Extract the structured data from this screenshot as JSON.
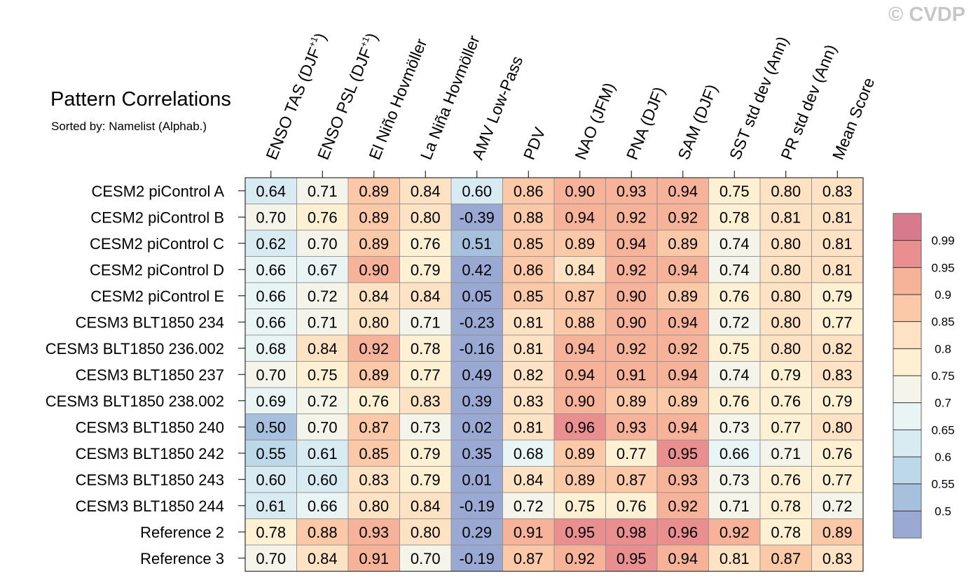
{
  "title": "Pattern Correlations",
  "subtitle": "Sorted by: Namelist (Alphab.)",
  "watermark": "© CVDP",
  "chart_data": {
    "type": "heatmap",
    "columns": [
      {
        "text": "ENSO TAS (DJF",
        "sup": "+1",
        "tail": ")"
      },
      {
        "text": "ENSO PSL (DJF",
        "sup": "+1",
        "tail": ")"
      },
      {
        "text": "El Niño Hovmöller"
      },
      {
        "text": "La Niña Hovmöller"
      },
      {
        "text": "AMV Low-Pass"
      },
      {
        "text": "PDV"
      },
      {
        "text": "NAO (JFM)"
      },
      {
        "text": "PNA (DJF)"
      },
      {
        "text": "SAM (DJF)"
      },
      {
        "text": "SST std dev (Ann)"
      },
      {
        "text": "PR std dev (Ann)"
      },
      {
        "text": "Mean Score"
      }
    ],
    "rows": [
      "CESM2 piControl A",
      "CESM2 piControl B",
      "CESM2 piControl C",
      "CESM2 piControl D",
      "CESM2 piControl E",
      "CESM3 BLT1850 234",
      "CESM3 BLT1850 236.002",
      "CESM3 BLT1850 237",
      "CESM3 BLT1850 238.002",
      "CESM3 BLT1850 240",
      "CESM3 BLT1850 242",
      "CESM3 BLT1850 243",
      "CESM3 BLT1850 244",
      "Reference 2",
      "Reference 3"
    ],
    "values": [
      [
        "0.64",
        "0.71",
        "0.89",
        "0.84",
        "0.60",
        "0.86",
        "0.90",
        "0.93",
        "0.94",
        "0.75",
        "0.80",
        "0.83"
      ],
      [
        "0.70",
        "0.76",
        "0.89",
        "0.80",
        "-0.39",
        "0.88",
        "0.94",
        "0.92",
        "0.92",
        "0.78",
        "0.81",
        "0.81"
      ],
      [
        "0.62",
        "0.70",
        "0.89",
        "0.76",
        "0.51",
        "0.85",
        "0.89",
        "0.94",
        "0.89",
        "0.74",
        "0.80",
        "0.81"
      ],
      [
        "0.66",
        "0.67",
        "0.90",
        "0.79",
        "0.42",
        "0.86",
        "0.84",
        "0.92",
        "0.94",
        "0.74",
        "0.80",
        "0.81"
      ],
      [
        "0.66",
        "0.72",
        "0.84",
        "0.84",
        "0.05",
        "0.85",
        "0.87",
        "0.90",
        "0.89",
        "0.76",
        "0.80",
        "0.79"
      ],
      [
        "0.66",
        "0.71",
        "0.80",
        "0.71",
        "-0.23",
        "0.81",
        "0.88",
        "0.90",
        "0.94",
        "0.72",
        "0.80",
        "0.77"
      ],
      [
        "0.68",
        "0.84",
        "0.92",
        "0.78",
        "-0.16",
        "0.81",
        "0.94",
        "0.92",
        "0.92",
        "0.75",
        "0.80",
        "0.82"
      ],
      [
        "0.70",
        "0.75",
        "0.89",
        "0.77",
        "0.49",
        "0.82",
        "0.94",
        "0.91",
        "0.94",
        "0.74",
        "0.79",
        "0.83"
      ],
      [
        "0.69",
        "0.72",
        "0.76",
        "0.83",
        "0.39",
        "0.83",
        "0.90",
        "0.89",
        "0.89",
        "0.76",
        "0.76",
        "0.79"
      ],
      [
        "0.50",
        "0.70",
        "0.87",
        "0.73",
        "0.02",
        "0.81",
        "0.96",
        "0.93",
        "0.94",
        "0.73",
        "0.77",
        "0.80"
      ],
      [
        "0.55",
        "0.61",
        "0.85",
        "0.79",
        "0.35",
        "0.68",
        "0.89",
        "0.77",
        "0.95",
        "0.66",
        "0.71",
        "0.76"
      ],
      [
        "0.60",
        "0.60",
        "0.83",
        "0.79",
        "0.01",
        "0.84",
        "0.89",
        "0.87",
        "0.93",
        "0.73",
        "0.76",
        "0.77"
      ],
      [
        "0.61",
        "0.66",
        "0.80",
        "0.84",
        "-0.19",
        "0.72",
        "0.75",
        "0.76",
        "0.92",
        "0.71",
        "0.78",
        "0.72"
      ],
      [
        "0.78",
        "0.88",
        "0.93",
        "0.80",
        "0.29",
        "0.91",
        "0.95",
        "0.98",
        "0.96",
        "0.92",
        "0.78",
        "0.89"
      ],
      [
        "0.70",
        "0.84",
        "0.91",
        "0.70",
        "-0.19",
        "0.87",
        "0.92",
        "0.95",
        "0.94",
        "0.81",
        "0.87",
        "0.83"
      ]
    ],
    "colorbar": {
      "levels": [
        "0.5",
        "0.55",
        "0.6",
        "0.65",
        "0.7",
        "0.75",
        "0.8",
        "0.85",
        "0.9",
        "0.95",
        "0.99"
      ],
      "colors": [
        "#99a9d3",
        "#a7c0dd",
        "#bdd8e8",
        "#d8ebf3",
        "#e9f4f5",
        "#f4f4ea",
        "#fdf0d3",
        "#fde2c3",
        "#fcc9a8",
        "#f6b39a",
        "#e98f8f",
        "#d87a8e"
      ]
    }
  }
}
